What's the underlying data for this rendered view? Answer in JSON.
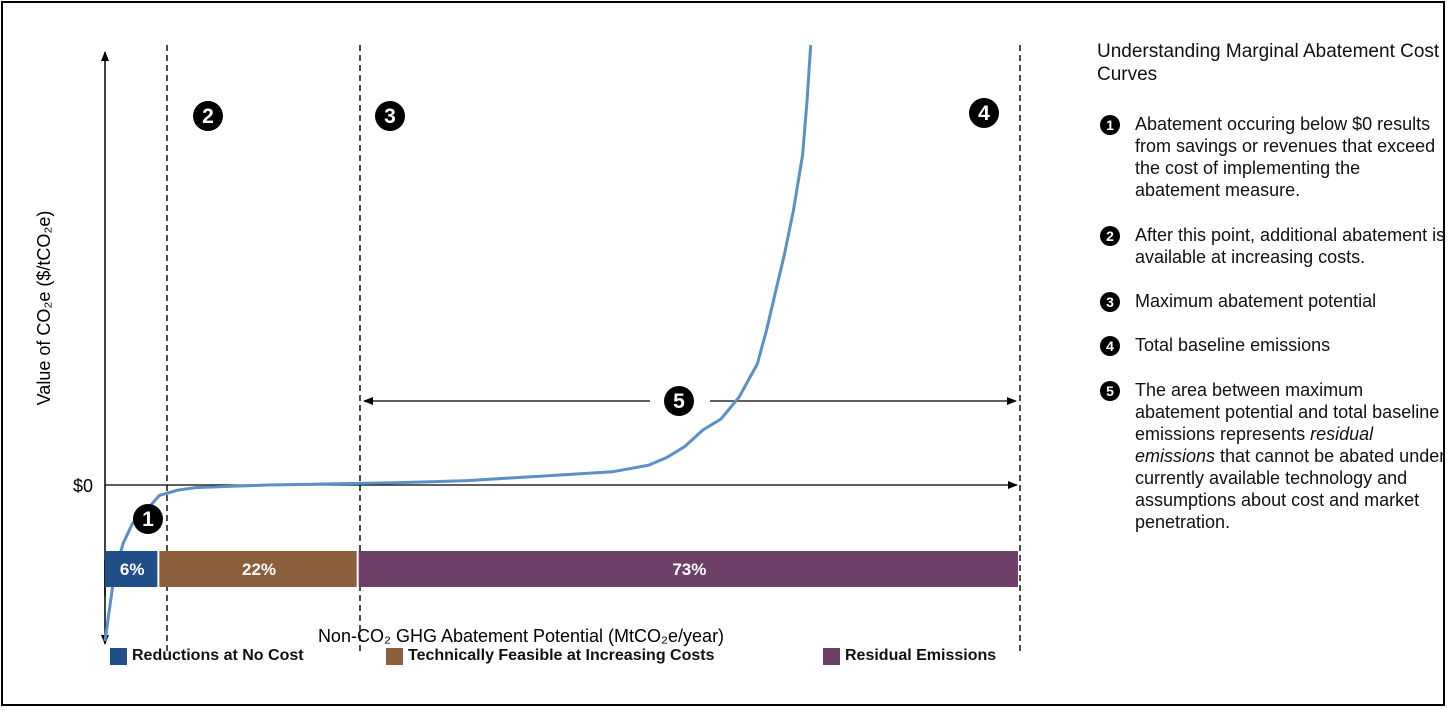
{
  "chart_data": {
    "type": "area",
    "title": "",
    "xlabel": "Non-CO₂ GHG Abatement Potential (MtCO₂e/year)",
    "ylabel": "Value of CO₂e ($/tCO₂e)",
    "y_tick_labels": [
      "$0"
    ],
    "grid": false,
    "legend_position": "bottom",
    "curve": {
      "name": "Marginal abatement cost curve",
      "color": "#5b8fc7",
      "x": [
        0,
        1,
        2,
        3,
        4,
        5,
        6,
        8,
        10,
        14,
        18,
        22,
        25,
        28,
        32,
        36,
        40,
        44,
        48,
        52,
        56,
        60,
        62,
        64,
        66,
        68,
        70,
        71,
        72,
        73,
        74,
        75,
        76,
        77,
        77.5,
        77.9
      ],
      "y": [
        -120,
        -70,
        -45,
        -30,
        -22,
        -16,
        -8,
        -4,
        -2,
        -1,
        0,
        0.5,
        1,
        1.5,
        2,
        3,
        4,
        6,
        8,
        10,
        12,
        18,
        25,
        35,
        50,
        60,
        80,
        95,
        110,
        140,
        175,
        210,
        250,
        300,
        350,
        400
      ]
    },
    "bands": [
      {
        "name": "Reductions at No Cost",
        "label": "6%",
        "value": 6,
        "color": "#1f4e88"
      },
      {
        "name": "Technically Feasible at Increasing Costs",
        "label": "22%",
        "value": 22,
        "color": "#8b5e3c"
      },
      {
        "name": "Residual Emissions",
        "label": "73%",
        "value": 73,
        "color": "#6e4068"
      }
    ],
    "markers": [
      {
        "number": "1",
        "note": "no-cost boundary"
      },
      {
        "number": "2",
        "note": "increasing cost region"
      },
      {
        "number": "3",
        "note": "maximum abatement potential"
      },
      {
        "number": "4",
        "note": "total baseline emissions"
      },
      {
        "number": "5",
        "note": "residual emissions span"
      }
    ]
  },
  "panel": {
    "title": "Understanding Marginal Abatement Cost Curves",
    "notes": [
      {
        "number": "1",
        "text": "Abatement occuring below $0 results from savings or revenues that exceed the cost of implementing the abatement measure."
      },
      {
        "number": "2",
        "text": "After this point, additional abatement is available at increasing costs."
      },
      {
        "number": "3",
        "text": "Maximum abatement potential"
      },
      {
        "number": "4",
        "text": "Total baseline emissions"
      },
      {
        "number": "5",
        "text_before": "The area between maximum abatement potential and total baseline emissions represents ",
        "text_em": "residual emissions",
        "text_after": " that cannot be abated under currently available technology and assumptions about cost and market penetration."
      }
    ]
  },
  "legend": [
    {
      "label": "Reductions at No Cost",
      "color": "#1f4e88"
    },
    {
      "label": "Technically Feasible at Increasing Costs",
      "color": "#8b5e3c"
    },
    {
      "label": "Residual Emissions",
      "color": "#6e4068"
    }
  ]
}
